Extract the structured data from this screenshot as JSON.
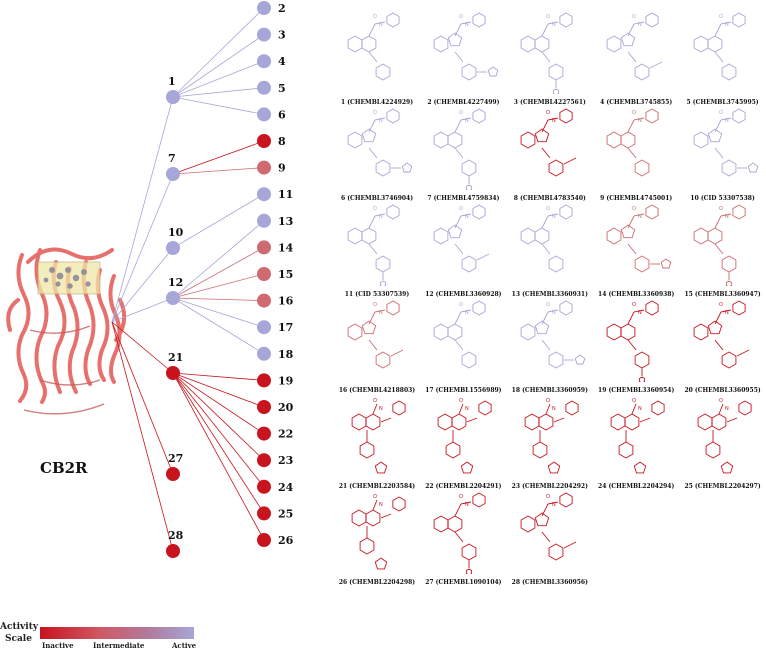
{
  "colors": {
    "inactive": "#c8141e",
    "intermediate": "#cf6a70",
    "active": "#a6a6d8",
    "protein": "#e8706c"
  },
  "protein": {
    "label": "CB2R"
  },
  "tree": {
    "hubs": [
      {
        "label": "1"
      },
      {
        "label": "7"
      },
      {
        "label": "10"
      },
      {
        "label": "12"
      },
      {
        "label": "21"
      },
      {
        "label": "27"
      },
      {
        "label": "28"
      }
    ],
    "leaves": [
      {
        "label": "2",
        "activity": "active",
        "parent": "1"
      },
      {
        "label": "3",
        "activity": "active",
        "parent": "1"
      },
      {
        "label": "4",
        "activity": "active",
        "parent": "1"
      },
      {
        "label": "5",
        "activity": "active",
        "parent": "1"
      },
      {
        "label": "6",
        "activity": "active",
        "parent": "1"
      },
      {
        "label": "8",
        "activity": "inactive",
        "parent": "7"
      },
      {
        "label": "9",
        "activity": "intermediate",
        "parent": "7"
      },
      {
        "label": "11",
        "activity": "active",
        "parent": "10"
      },
      {
        "label": "13",
        "activity": "active",
        "parent": "12"
      },
      {
        "label": "14",
        "activity": "intermediate",
        "parent": "12"
      },
      {
        "label": "15",
        "activity": "intermediate",
        "parent": "12"
      },
      {
        "label": "16",
        "activity": "intermediate",
        "parent": "12"
      },
      {
        "label": "17",
        "activity": "active",
        "parent": "12"
      },
      {
        "label": "18",
        "activity": "active",
        "parent": "12"
      },
      {
        "label": "19",
        "activity": "inactive",
        "parent": "21"
      },
      {
        "label": "20",
        "activity": "inactive",
        "parent": "21"
      },
      {
        "label": "22",
        "activity": "inactive",
        "parent": "21"
      },
      {
        "label": "23",
        "activity": "inactive",
        "parent": "21"
      },
      {
        "label": "24",
        "activity": "inactive",
        "parent": "21"
      },
      {
        "label": "25",
        "activity": "inactive",
        "parent": "21"
      },
      {
        "label": "26",
        "activity": "inactive",
        "parent": "21"
      }
    ]
  },
  "compounds": [
    {
      "caption": "1 (CHEMBL4224929)",
      "activity": "active"
    },
    {
      "caption": "2 (CHEMBL4227499)",
      "activity": "active"
    },
    {
      "caption": "3 (CHEMBL4227561)",
      "activity": "active"
    },
    {
      "caption": "4 (CHEMBL3745855)",
      "activity": "active"
    },
    {
      "caption": "5 (CHEMBL3745995)",
      "activity": "active"
    },
    {
      "caption": "6 (CHEMBL3746904)",
      "activity": "active"
    },
    {
      "caption": "7 (CHEMBL4759834)",
      "activity": "active"
    },
    {
      "caption": "8 (CHEMBL4783540)",
      "activity": "inactive"
    },
    {
      "caption": "9 (CHEMBL4745001)",
      "activity": "intermediate"
    },
    {
      "caption": "10 (CID 53307538)",
      "activity": "active"
    },
    {
      "caption": "11 (CID 53307539)",
      "activity": "active"
    },
    {
      "caption": "12 (CHEMBL3360928)",
      "activity": "active"
    },
    {
      "caption": "13 (CHEMBL3360931)",
      "activity": "active"
    },
    {
      "caption": "14 (CHEMBL3360938)",
      "activity": "intermediate"
    },
    {
      "caption": "15 (CHEMBL3360947)",
      "activity": "intermediate"
    },
    {
      "caption": "16 (CHEMBL4218803)",
      "activity": "intermediate"
    },
    {
      "caption": "17 (CHEMBL1556989)",
      "activity": "active"
    },
    {
      "caption": "18 (CHEMBL3360959)",
      "activity": "active"
    },
    {
      "caption": "19 (CHEMBL3360954)",
      "activity": "inactive"
    },
    {
      "caption": "20 (CHEMBL3360955)",
      "activity": "inactive"
    },
    {
      "caption": "21 (CHEMBL2203584)",
      "activity": "inactive"
    },
    {
      "caption": "22 (CHEMBL2204291)",
      "activity": "inactive"
    },
    {
      "caption": "23 (CHEMBL2204292)",
      "activity": "inactive"
    },
    {
      "caption": "24 (CHEMBL2204294)",
      "activity": "inactive"
    },
    {
      "caption": "25 (CHEMBL2204297)",
      "activity": "inactive"
    },
    {
      "caption": "26 (CHEMBL2204298)",
      "activity": "inactive"
    },
    {
      "caption": "27 (CHEMBL1090104)",
      "activity": "inactive"
    },
    {
      "caption": "28 (CHEMBL3360956)",
      "activity": "inactive"
    }
  ],
  "scale": {
    "title_line1": "Activity",
    "title_line2": "Scale",
    "inactive": "Inactive",
    "intermediate": "Intermediate",
    "active": "Active"
  }
}
